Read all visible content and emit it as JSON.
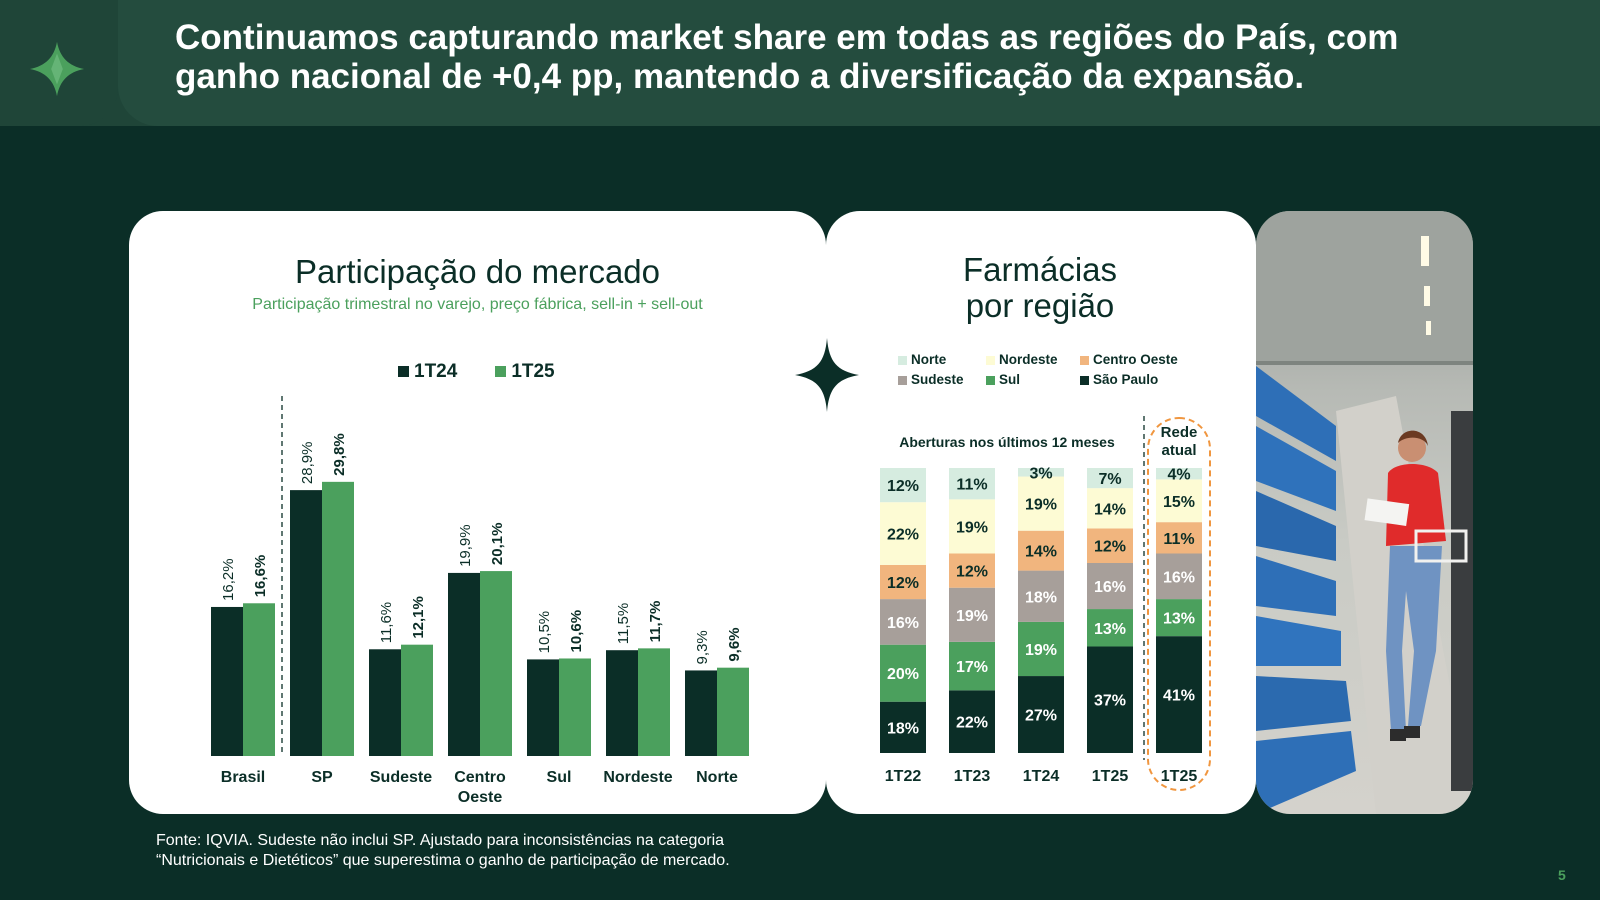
{
  "header": {
    "title_line1": "Continuamos capturando market share em todas as regiões do País, com",
    "title_line2": "ganho nacional de +0,4 pp, mantendo a diversificação da expansão.",
    "logo_icon": "four-point-star-logo-icon"
  },
  "colors": {
    "dark_green": "#0b2e27",
    "green": "#4ba05d",
    "norte": "#d6ece0",
    "nordeste": "#fdfbd4",
    "centro_oeste": "#f1b57e",
    "sudeste": "#a79f9a",
    "sul": "#4ba05d",
    "sao_paulo": "#0b2e27",
    "highlight": "#f0963f"
  },
  "chart_data": [
    {
      "type": "bar",
      "title": "Participação do mercado",
      "subtitle": "Participação trimestral no varejo, preço fábrica, sell-in + sell-out",
      "categories": [
        "Brasil",
        "SP",
        "Sudeste",
        "Centro\nOeste",
        "Sul",
        "Nordeste",
        "Norte"
      ],
      "series": [
        {
          "name": "1T24",
          "values": [
            16.2,
            28.9,
            11.6,
            19.9,
            10.5,
            11.5,
            9.3
          ],
          "labels": [
            "16,2%",
            "28,9%",
            "11,6%",
            "19,9%",
            "10,5%",
            "11,5%",
            "9,3%"
          ]
        },
        {
          "name": "1T25",
          "values": [
            16.6,
            29.8,
            12.1,
            20.1,
            10.6,
            11.7,
            9.6
          ],
          "labels": [
            "16,6%",
            "29,8%",
            "12,1%",
            "20,1%",
            "10,6%",
            "11,7%",
            "9,6%"
          ]
        }
      ],
      "ylim": [
        0,
        33
      ],
      "legend": "top-center"
    },
    {
      "type": "bar",
      "stacked": true,
      "normalized": true,
      "title": "Farmácias\npor região",
      "annotation": "Aberturas nos últimos 12 meses",
      "highlight_label": "Rede\natual",
      "categories": [
        "1T22",
        "1T23",
        "1T24",
        "1T25",
        "1T25"
      ],
      "series": [
        {
          "name": "São Paulo",
          "key": "sao_paulo",
          "values": [
            18,
            22,
            27,
            37,
            41
          ]
        },
        {
          "name": "Sul",
          "key": "sul",
          "values": [
            20,
            17,
            19,
            13,
            13
          ]
        },
        {
          "name": "Sudeste",
          "key": "sudeste",
          "values": [
            16,
            19,
            18,
            16,
            16
          ]
        },
        {
          "name": "Centro Oeste",
          "key": "centro_oeste",
          "values": [
            12,
            12,
            14,
            12,
            11
          ]
        },
        {
          "name": "Nordeste",
          "key": "nordeste",
          "values": [
            22,
            19,
            19,
            14,
            15
          ]
        },
        {
          "name": "Norte",
          "key": "norte",
          "values": [
            12,
            11,
            3,
            7,
            4
          ]
        }
      ],
      "legend_order": [
        "Norte",
        "Nordeste",
        "Centro Oeste",
        "Sudeste",
        "Sul",
        "São Paulo"
      ],
      "legend": "top"
    }
  ],
  "footer": {
    "source_line1": "Fonte: IQVIA. Sudeste não inclui SP. Ajustado para inconsistências na categoria",
    "source_line2": "“Nutricionais e Dietéticos” que superestima o ganho de participação de mercado.",
    "page_number": "5"
  }
}
